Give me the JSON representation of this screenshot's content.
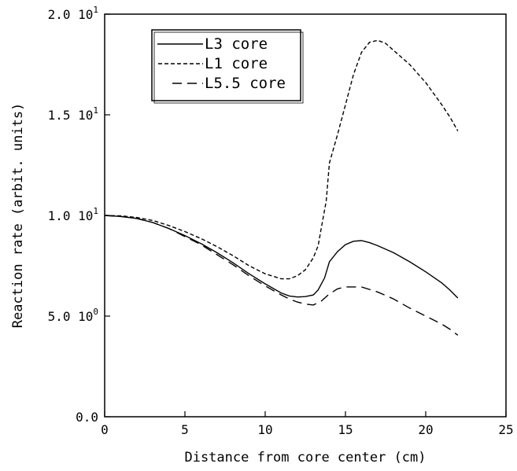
{
  "chart_data": {
    "type": "line",
    "xlabel": "Distance from core center (cm)",
    "ylabel": "Reaction rate (arbit. units)",
    "xlim": [
      0,
      25
    ],
    "ylim": [
      0,
      20
    ],
    "x_ticks": [
      {
        "value": 0,
        "label": "0"
      },
      {
        "value": 5,
        "label": "5"
      },
      {
        "value": 10,
        "label": "10"
      },
      {
        "value": 15,
        "label": "15"
      },
      {
        "value": 20,
        "label": "20"
      },
      {
        "value": 25,
        "label": "25"
      }
    ],
    "y_ticks": [
      {
        "value": 0,
        "mantissa": "0.0",
        "exp": ""
      },
      {
        "value": 5,
        "mantissa": "5.0 10",
        "exp": "0"
      },
      {
        "value": 10,
        "mantissa": "1.0 10",
        "exp": "1"
      },
      {
        "value": 15,
        "mantissa": "1.5 10",
        "exp": "1"
      },
      {
        "value": 20,
        "mantissa": "2.0 10",
        "exp": "1"
      }
    ],
    "grid": false,
    "legend_position": "top-left",
    "series": [
      {
        "name": "L3 core",
        "dash": "solid",
        "color": "#000000",
        "x": [
          0,
          1,
          2,
          3,
          4,
          5,
          6,
          7,
          8,
          9,
          10,
          11,
          11.5,
          12,
          12.5,
          13,
          13.3,
          13.7,
          14,
          14.5,
          15,
          15.5,
          16,
          16.5,
          17,
          18,
          19,
          20,
          21,
          21.5,
          22
        ],
        "y": [
          10.0,
          9.95,
          9.85,
          9.65,
          9.35,
          9.0,
          8.6,
          8.15,
          7.65,
          7.1,
          6.6,
          6.15,
          6.0,
          5.95,
          5.97,
          6.05,
          6.3,
          6.9,
          7.7,
          8.2,
          8.55,
          8.72,
          8.75,
          8.65,
          8.5,
          8.15,
          7.7,
          7.2,
          6.65,
          6.3,
          5.9
        ]
      },
      {
        "name": "L1 core",
        "dash": "dotted",
        "color": "#000000",
        "x": [
          0,
          1,
          2,
          3,
          4,
          5,
          6,
          7,
          8,
          9,
          10,
          11,
          11.5,
          12,
          12.5,
          13,
          13.3,
          13.5,
          13.8,
          14,
          14.5,
          15,
          15.5,
          16,
          16.5,
          17,
          17.5,
          18,
          19,
          20,
          21,
          21.5,
          22
        ],
        "y": [
          10.0,
          9.98,
          9.9,
          9.75,
          9.5,
          9.2,
          8.85,
          8.45,
          8.0,
          7.5,
          7.1,
          6.85,
          6.85,
          7.0,
          7.3,
          7.9,
          8.5,
          9.4,
          10.7,
          12.6,
          14.0,
          15.5,
          17.0,
          18.1,
          18.6,
          18.7,
          18.55,
          18.2,
          17.5,
          16.6,
          15.5,
          14.9,
          14.2
        ]
      },
      {
        "name": "L5.5 core",
        "dash": "dashed",
        "color": "#000000",
        "x": [
          0,
          1,
          2,
          3,
          4,
          5,
          6,
          7,
          8,
          9,
          10,
          11,
          11.5,
          12,
          12.5,
          13,
          13.5,
          14,
          14.5,
          15,
          16,
          17,
          18,
          19,
          20,
          21,
          21.5,
          22
        ],
        "y": [
          10.0,
          9.95,
          9.85,
          9.65,
          9.35,
          8.95,
          8.55,
          8.05,
          7.55,
          7.0,
          6.5,
          6.05,
          5.85,
          5.7,
          5.6,
          5.55,
          5.75,
          6.1,
          6.35,
          6.45,
          6.45,
          6.2,
          5.85,
          5.4,
          5.0,
          4.6,
          4.35,
          4.05
        ]
      }
    ]
  }
}
